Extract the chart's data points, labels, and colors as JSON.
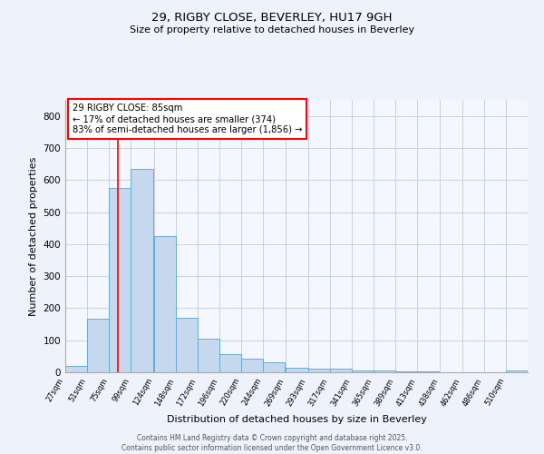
{
  "title1": "29, RIGBY CLOSE, BEVERLEY, HU17 9GH",
  "title2": "Size of property relative to detached houses in Beverley",
  "xlabel": "Distribution of detached houses by size in Beverley",
  "ylabel": "Number of detached properties",
  "bin_labels": [
    "27sqm",
    "51sqm",
    "75sqm",
    "99sqm",
    "124sqm",
    "148sqm",
    "172sqm",
    "196sqm",
    "220sqm",
    "244sqm",
    "269sqm",
    "293sqm",
    "317sqm",
    "341sqm",
    "365sqm",
    "389sqm",
    "413sqm",
    "438sqm",
    "462sqm",
    "486sqm",
    "510sqm"
  ],
  "bin_edges": [
    27,
    51,
    75,
    99,
    124,
    148,
    172,
    196,
    220,
    244,
    269,
    293,
    317,
    341,
    365,
    389,
    413,
    438,
    462,
    486,
    510
  ],
  "bar_heights": [
    20,
    168,
    575,
    635,
    425,
    170,
    105,
    57,
    42,
    32,
    15,
    11,
    10,
    7,
    5,
    3,
    3,
    1,
    0,
    0,
    7
  ],
  "bar_color": "#c5d8ee",
  "bar_edge_color": "#6aaad4",
  "red_line_x": 85,
  "ylim": [
    0,
    850
  ],
  "yticks": [
    0,
    100,
    200,
    300,
    400,
    500,
    600,
    700,
    800
  ],
  "annotation_title": "29 RIGBY CLOSE: 85sqm",
  "annotation_line1": "← 17% of detached houses are smaller (374)",
  "annotation_line2": "83% of semi-detached houses are larger (1,856) →",
  "annotation_box_color": "white",
  "annotation_box_edge": "red",
  "footer1": "Contains HM Land Registry data © Crown copyright and database right 2025.",
  "footer2": "Contains public sector information licensed under the Open Government Licence v3.0.",
  "bg_color": "#eef2fb",
  "plot_bg_color": "#f5f7fe",
  "grid_color": "#c8d0e8"
}
